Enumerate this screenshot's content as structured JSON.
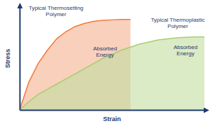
{
  "chart_data": {
    "type": "area",
    "x_label": "Strain",
    "y_label": "Stress",
    "x": [
      0,
      0.5,
      1,
      1.5,
      2,
      2.5,
      3,
      3.5,
      4,
      4.5,
      5,
      5.5,
      6,
      6.5,
      7,
      7.5,
      8,
      8.5,
      9,
      9.5,
      10
    ],
    "series": [
      {
        "name": "Typical Thermosetting Polymer",
        "color": "#f07a3a",
        "values": [
          0,
          2.7,
          4.5,
          5.8,
          6.9,
          7.6,
          8.1,
          8.4,
          8.6,
          8.7,
          8.75,
          8.8,
          8.8,
          null,
          null,
          null,
          null,
          null,
          null,
          null,
          null
        ]
      },
      {
        "name": "Typical Thermoplastic Polymer",
        "color": "#a6cf6a",
        "values": [
          0,
          0.8,
          1.5,
          2.0,
          2.5,
          3.0,
          3.5,
          4.0,
          4.5,
          5.0,
          5.4,
          5.8,
          6.1,
          6.4,
          6.6,
          6.8,
          6.9,
          7.0,
          7.05,
          7.1,
          7.1
        ]
      }
    ],
    "annotations": [
      "Absorbed Energy",
      "Absorbed Energy"
    ],
    "xlim": [
      0,
      10
    ],
    "ylim": [
      0,
      10
    ],
    "xticks": [],
    "yticks": [],
    "tick_labels": false,
    "grid": false
  }
}
